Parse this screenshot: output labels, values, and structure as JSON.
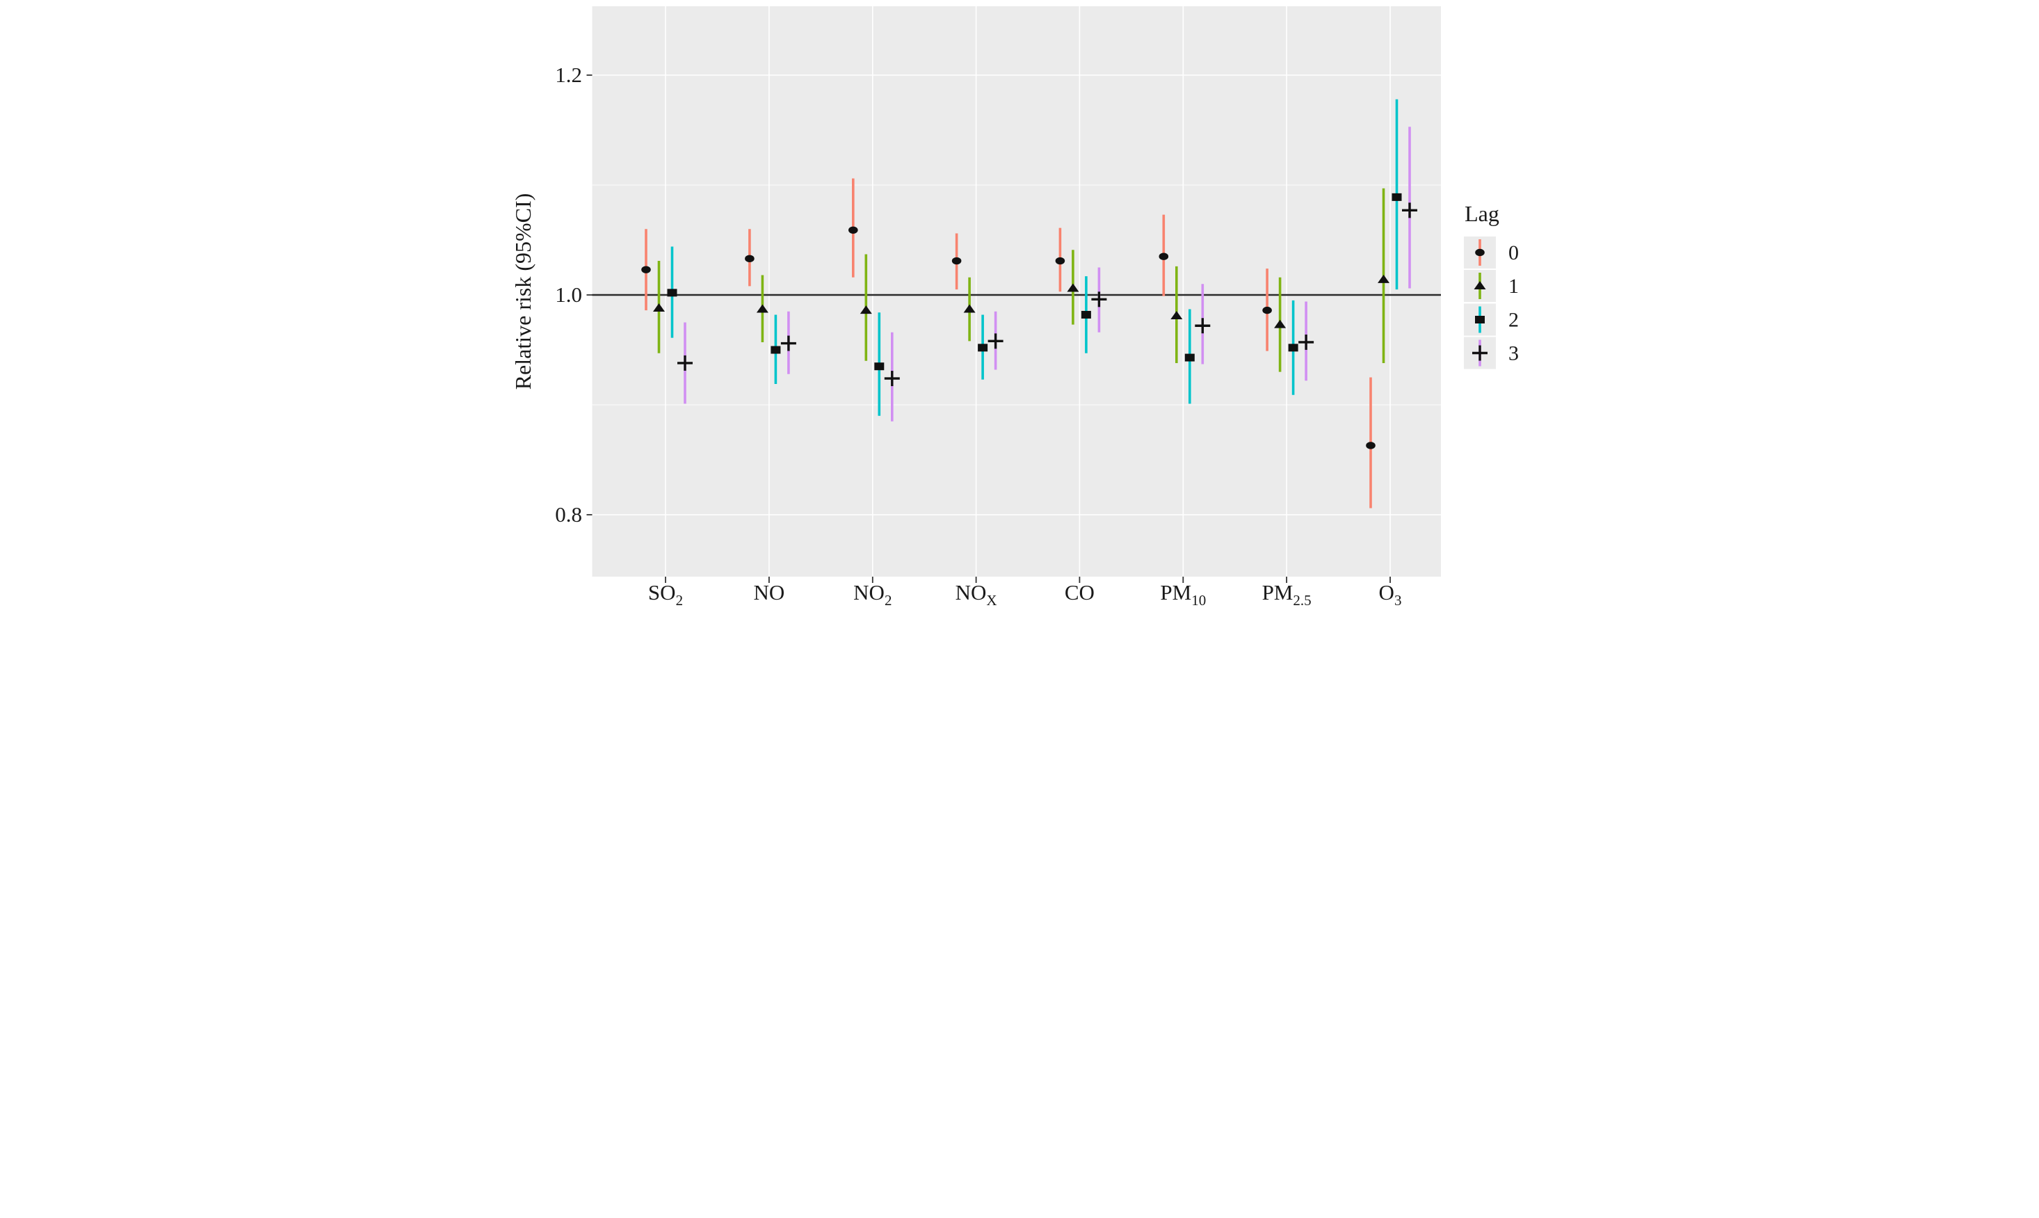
{
  "figure": {
    "y_axis": {
      "title": "Relative risk (95%CI)",
      "tick_labels": [
        "0.8",
        "1.0",
        "1.2"
      ],
      "tick_values": [
        0.8,
        1.0,
        1.2
      ],
      "minor_gridlines": [
        0.9,
        1.1
      ],
      "reference_line": 1.0
    },
    "x_axis": {
      "categories": [
        {
          "main": "SO",
          "sub": "2"
        },
        {
          "main": "NO",
          "sub": ""
        },
        {
          "main": "NO",
          "sub": "2"
        },
        {
          "main": "NO",
          "sub": "X"
        },
        {
          "main": "CO",
          "sub": ""
        },
        {
          "main": "PM",
          "sub": "10"
        },
        {
          "main": "PM",
          "sub": "2.5"
        },
        {
          "main": "O",
          "sub": "3"
        }
      ]
    },
    "legend": {
      "title": "Lag",
      "items": [
        {
          "label": "0",
          "marker": "circle",
          "color": "#F8836F"
        },
        {
          "label": "1",
          "marker": "triangle",
          "color": "#7FB414"
        },
        {
          "label": "2",
          "marker": "square",
          "color": "#00C4CB"
        },
        {
          "label": "3",
          "marker": "plus",
          "color": "#D18FF2"
        }
      ]
    },
    "colors": {
      "panel_background": "#EBEBEB",
      "gridline": "#FFFFFF",
      "reference_line": "#2b2b2b",
      "marker": "#111111",
      "lag0": "#F8836F",
      "lag1": "#7FB414",
      "lag2": "#00C4CB",
      "lag3": "#D18FF2"
    }
  },
  "chart_data": {
    "type": "scatter",
    "subtype": "errorbar-forest",
    "title": "",
    "ylabel": "Relative risk (95%CI)",
    "xlabel": "",
    "ylim": [
      0.744,
      1.263
    ],
    "grid": "on",
    "legend_position": "right",
    "legend_title": "Lag",
    "categories": [
      "SO2",
      "NO",
      "NO2",
      "NOx",
      "CO",
      "PM10",
      "PM2.5",
      "O3"
    ],
    "series": [
      {
        "name": "0",
        "marker": "circle",
        "color": "#F8836F",
        "estimate": [
          1.023,
          1.033,
          1.059,
          1.031,
          1.031,
          1.035,
          0.986,
          0.863
        ],
        "ci_low": [
          0.986,
          1.008,
          1.016,
          1.005,
          1.003,
          0.999,
          0.949,
          0.806
        ],
        "ci_high": [
          1.06,
          1.06,
          1.106,
          1.056,
          1.061,
          1.073,
          1.024,
          0.925
        ]
      },
      {
        "name": "1",
        "marker": "triangle",
        "color": "#7FB414",
        "estimate": [
          0.988,
          0.987,
          0.986,
          0.987,
          1.006,
          0.981,
          0.973,
          1.014
        ],
        "ci_low": [
          0.947,
          0.957,
          0.94,
          0.958,
          0.973,
          0.938,
          0.93,
          0.938
        ],
        "ci_high": [
          1.031,
          1.018,
          1.037,
          1.016,
          1.041,
          1.026,
          1.016,
          1.097
        ]
      },
      {
        "name": "2",
        "marker": "square",
        "color": "#00C4CB",
        "estimate": [
          1.002,
          0.95,
          0.935,
          0.952,
          0.982,
          0.943,
          0.952,
          1.089
        ],
        "ci_low": [
          0.961,
          0.919,
          0.89,
          0.923,
          0.947,
          0.901,
          0.909,
          1.005
        ],
        "ci_high": [
          1.044,
          0.982,
          0.984,
          0.982,
          1.017,
          0.987,
          0.995,
          1.178
        ]
      },
      {
        "name": "3",
        "marker": "plus",
        "color": "#D18FF2",
        "estimate": [
          0.938,
          0.956,
          0.924,
          0.958,
          0.996,
          0.972,
          0.957,
          1.077
        ],
        "ci_low": [
          0.901,
          0.928,
          0.885,
          0.932,
          0.966,
          0.937,
          0.922,
          1.006
        ],
        "ci_high": [
          0.975,
          0.985,
          0.966,
          0.985,
          1.025,
          1.01,
          0.994,
          1.153
        ]
      }
    ]
  }
}
